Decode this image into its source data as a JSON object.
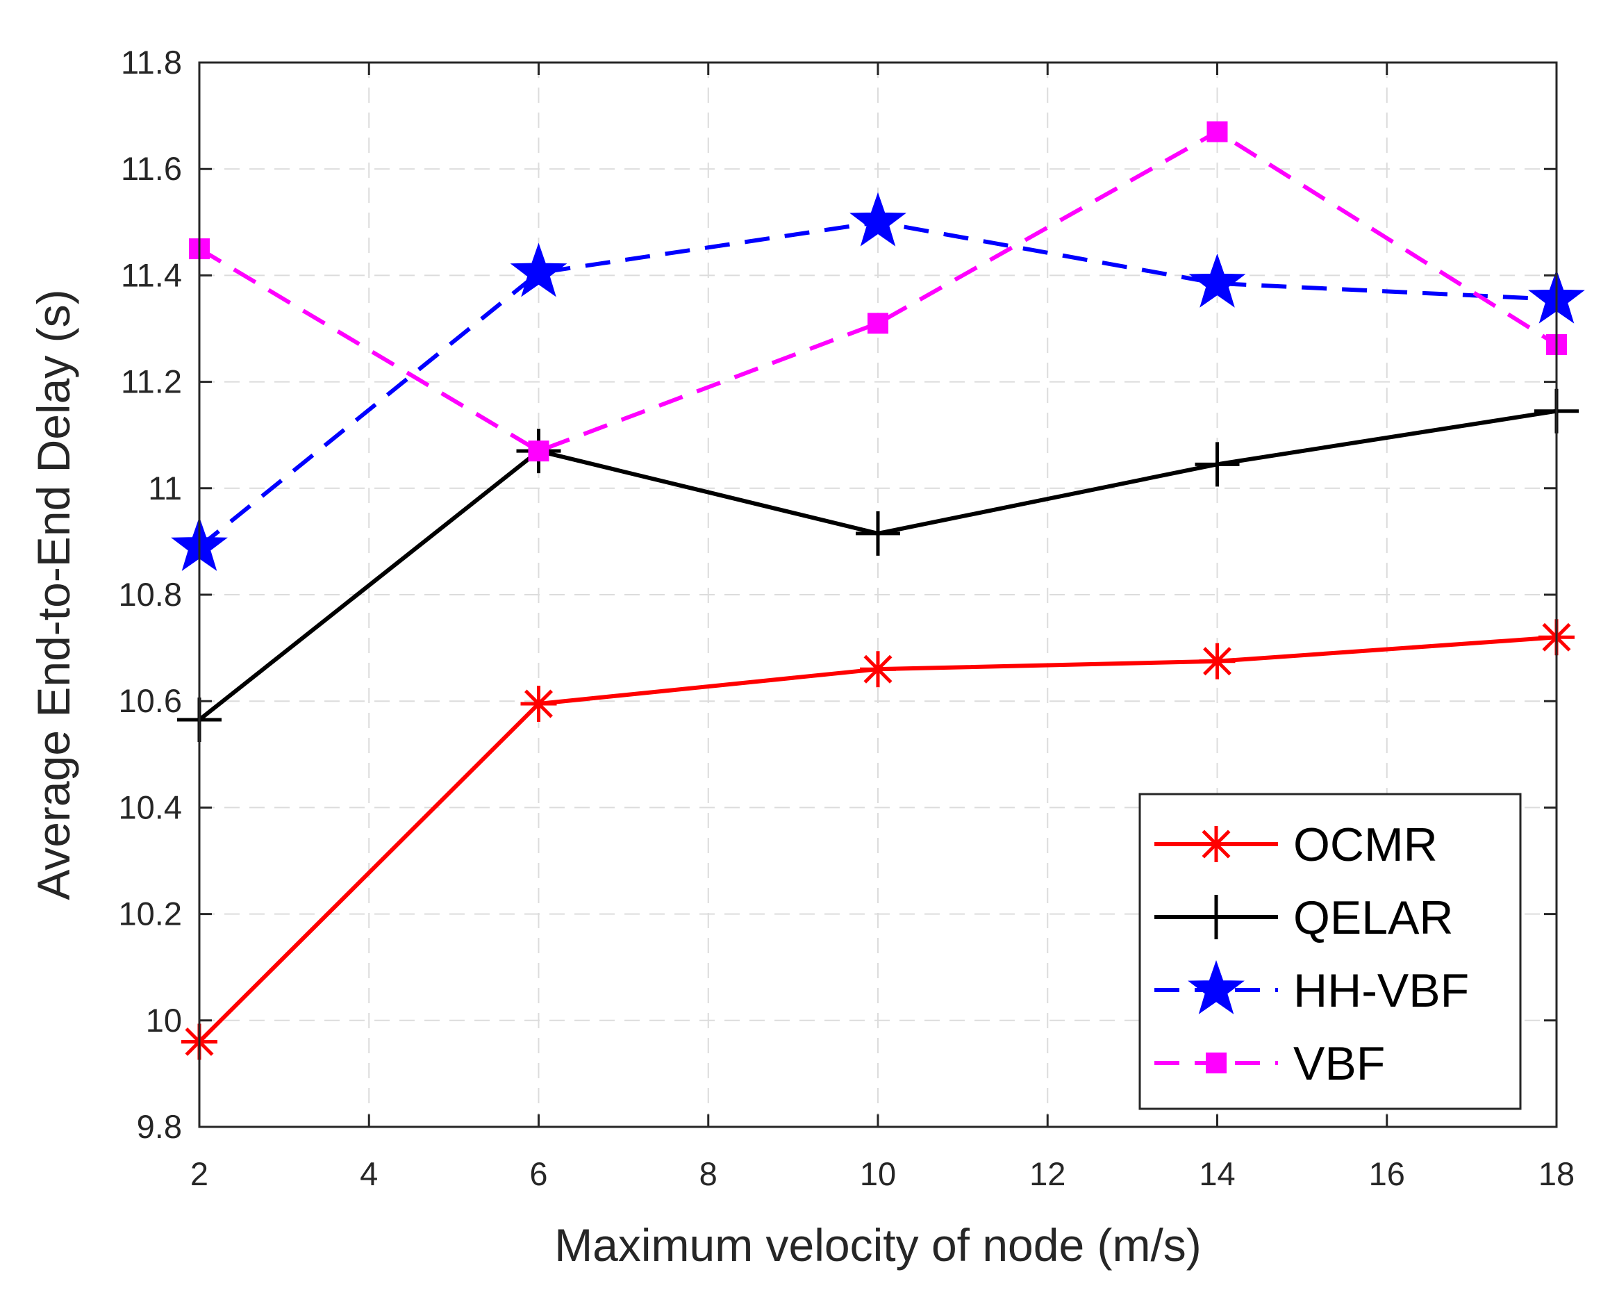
{
  "chart_data": {
    "type": "line",
    "title": "",
    "xlabel": "Maximum velocity of node (m/s)",
    "ylabel": "Average End-to-End Delay (s)",
    "xlim": [
      2,
      18
    ],
    "ylim": [
      9.8,
      11.8
    ],
    "xticks": [
      2,
      4,
      6,
      8,
      10,
      12,
      14,
      16,
      18
    ],
    "yticks": [
      9.8,
      10,
      10.2,
      10.4,
      10.6,
      10.8,
      11,
      11.2,
      11.4,
      11.6,
      11.8
    ],
    "xtick_labels": [
      "2",
      "4",
      "6",
      "8",
      "10",
      "12",
      "14",
      "16",
      "18"
    ],
    "ytick_labels": [
      "9.8",
      "10",
      "10.2",
      "10.4",
      "10.6",
      "10.8",
      "11",
      "11.2",
      "11.4",
      "11.6",
      "11.8"
    ],
    "grid": true,
    "legend_position": "bottom-right",
    "x": [
      2,
      6,
      10,
      14,
      18
    ],
    "series": [
      {
        "name": "OCMR",
        "values": [
          9.96,
          10.595,
          10.66,
          10.675,
          10.72
        ],
        "color": "#ff0000",
        "dash": "solid",
        "marker": "asterisk"
      },
      {
        "name": "QELAR",
        "values": [
          10.565,
          11.07,
          10.915,
          11.045,
          11.145
        ],
        "color": "#000000",
        "dash": "solid",
        "marker": "plus"
      },
      {
        "name": "HH-VBF",
        "values": [
          10.89,
          11.405,
          11.5,
          11.385,
          11.355
        ],
        "color": "#0000ff",
        "dash": "dashed",
        "marker": "star"
      },
      {
        "name": "VBF",
        "values": [
          11.45,
          11.07,
          11.31,
          11.67,
          11.27
        ],
        "color": "#ff00ff",
        "dash": "dashed",
        "marker": "square"
      }
    ]
  }
}
